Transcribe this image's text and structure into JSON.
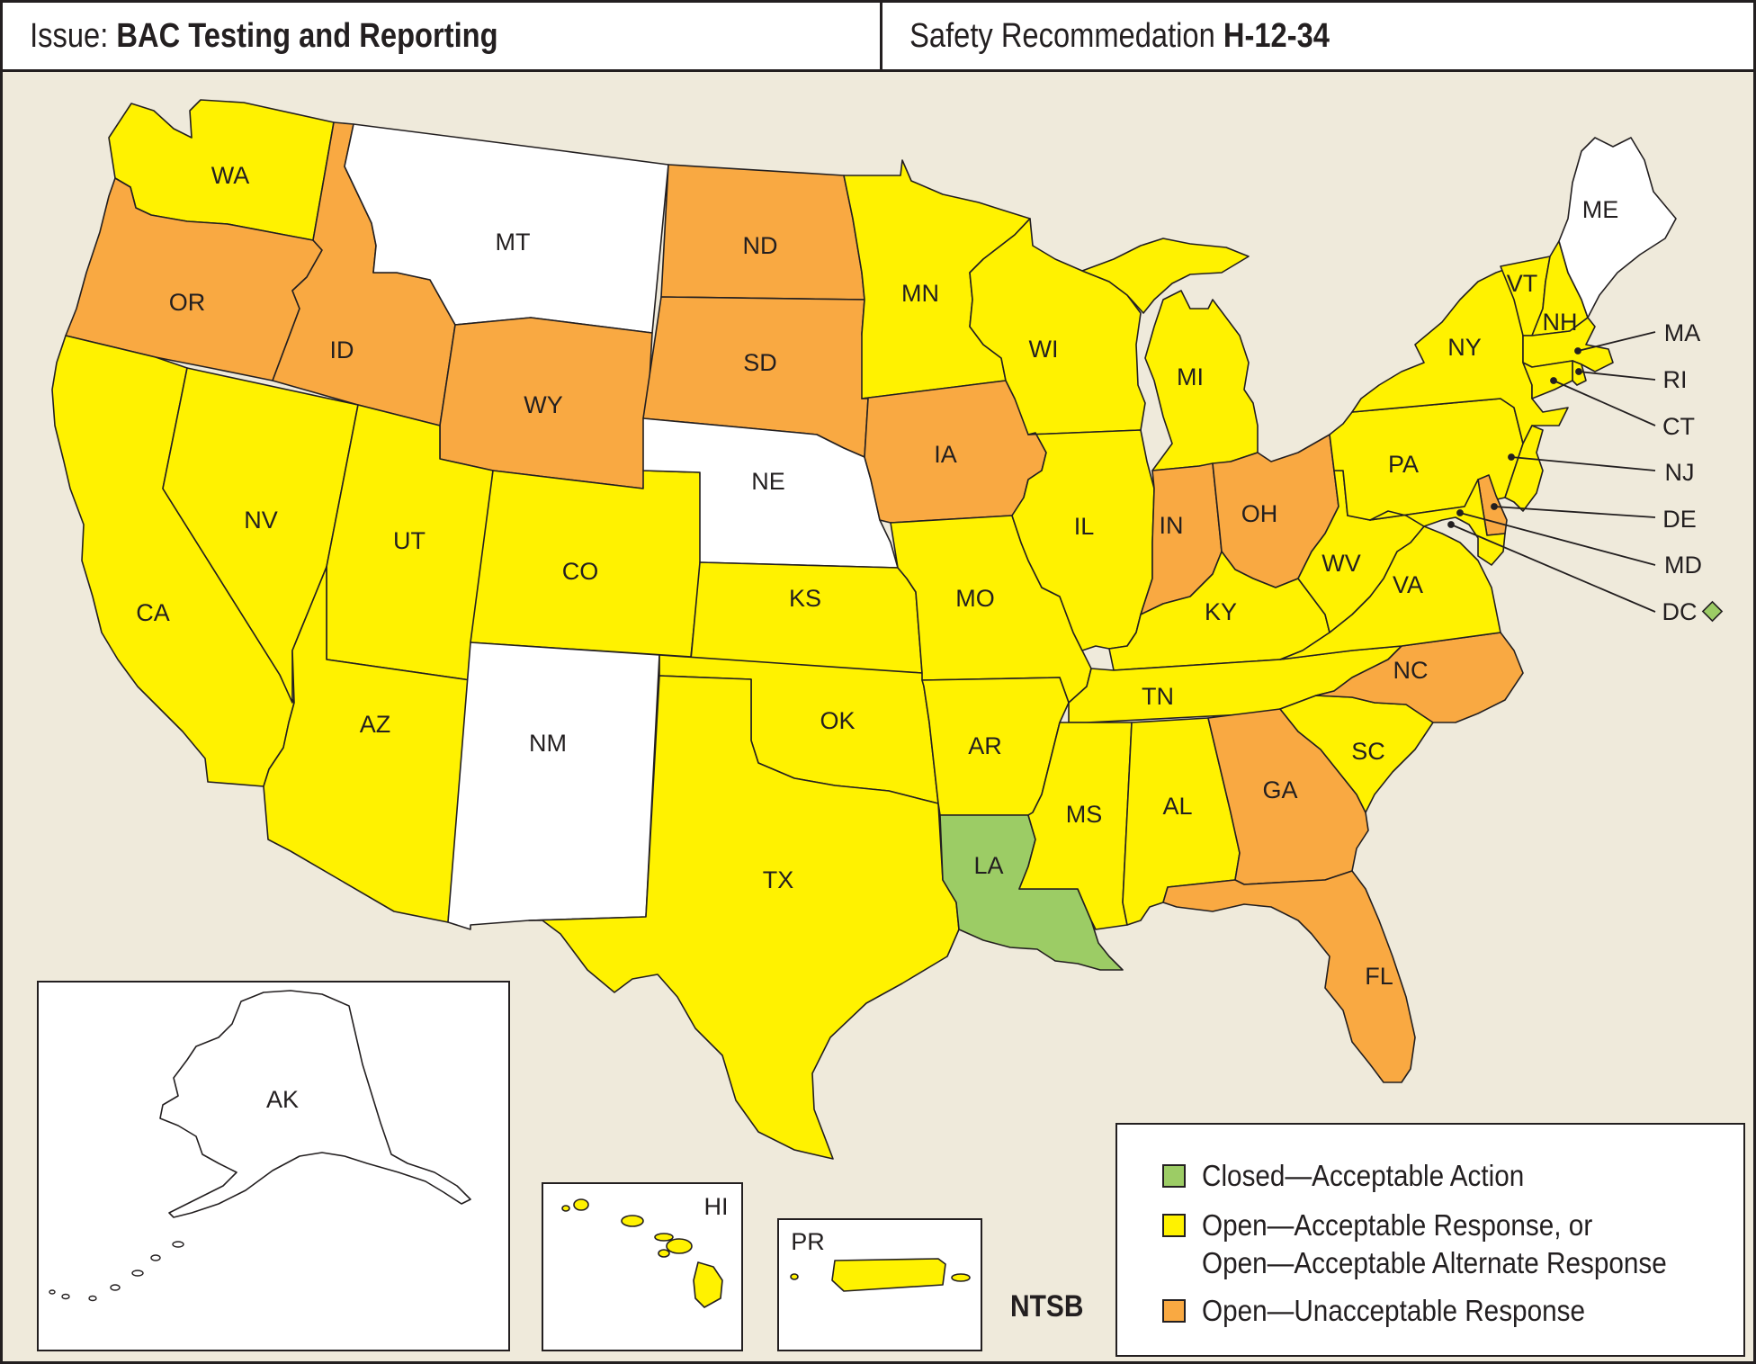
{
  "header": {
    "issue_prefix": "Issue:",
    "issue_title": "BAC Testing and Reporting",
    "rec_prefix": "Safety Recommedation",
    "rec_id": "H-12-34"
  },
  "colors": {
    "closed": "#9ccc65",
    "open_acceptable": "#fff200",
    "open_unacceptable": "#f9a942",
    "no_status": "#ffffff",
    "background": "#efeadb"
  },
  "legend": {
    "closed": "Closed—Acceptable Action",
    "open_acceptable_line1": "Open—Acceptable Response, or",
    "open_acceptable_line2": "Open—Acceptable Alternate Response",
    "open_unacceptable": "Open—Unacceptable Response"
  },
  "credit": "NTSB",
  "states": {
    "WA": {
      "label": "WA",
      "status": "open_acceptable"
    },
    "OR": {
      "label": "OR",
      "status": "open_unacceptable"
    },
    "CA": {
      "label": "CA",
      "status": "open_acceptable"
    },
    "NV": {
      "label": "NV",
      "status": "open_acceptable"
    },
    "ID": {
      "label": "ID",
      "status": "open_unacceptable"
    },
    "MT": {
      "label": "MT",
      "status": "no_status"
    },
    "WY": {
      "label": "WY",
      "status": "open_unacceptable"
    },
    "UT": {
      "label": "UT",
      "status": "open_acceptable"
    },
    "AZ": {
      "label": "AZ",
      "status": "open_acceptable"
    },
    "CO": {
      "label": "CO",
      "status": "open_acceptable"
    },
    "NM": {
      "label": "NM",
      "status": "no_status"
    },
    "ND": {
      "label": "ND",
      "status": "open_unacceptable"
    },
    "SD": {
      "label": "SD",
      "status": "open_unacceptable"
    },
    "NE": {
      "label": "NE",
      "status": "no_status"
    },
    "KS": {
      "label": "KS",
      "status": "open_acceptable"
    },
    "OK": {
      "label": "OK",
      "status": "open_acceptable"
    },
    "TX": {
      "label": "TX",
      "status": "open_acceptable"
    },
    "MN": {
      "label": "MN",
      "status": "open_acceptable"
    },
    "IA": {
      "label": "IA",
      "status": "open_unacceptable"
    },
    "MO": {
      "label": "MO",
      "status": "open_acceptable"
    },
    "AR": {
      "label": "AR",
      "status": "open_acceptable"
    },
    "LA": {
      "label": "LA",
      "status": "closed"
    },
    "WI": {
      "label": "WI",
      "status": "open_acceptable"
    },
    "IL": {
      "label": "IL",
      "status": "open_acceptable"
    },
    "MI": {
      "label": "MI",
      "status": "open_acceptable"
    },
    "IN": {
      "label": "IN",
      "status": "open_unacceptable"
    },
    "OH": {
      "label": "OH",
      "status": "open_unacceptable"
    },
    "KY": {
      "label": "KY",
      "status": "open_acceptable"
    },
    "TN": {
      "label": "TN",
      "status": "open_acceptable"
    },
    "MS": {
      "label": "MS",
      "status": "open_acceptable"
    },
    "AL": {
      "label": "AL",
      "status": "open_acceptable"
    },
    "GA": {
      "label": "GA",
      "status": "open_unacceptable"
    },
    "FL": {
      "label": "FL",
      "status": "open_unacceptable"
    },
    "SC": {
      "label": "SC",
      "status": "open_acceptable"
    },
    "NC": {
      "label": "NC",
      "status": "open_unacceptable"
    },
    "VA": {
      "label": "VA",
      "status": "open_acceptable"
    },
    "WV": {
      "label": "WV",
      "status": "open_acceptable"
    },
    "PA": {
      "label": "PA",
      "status": "open_acceptable"
    },
    "NY": {
      "label": "NY",
      "status": "open_acceptable"
    },
    "VT": {
      "label": "VT",
      "status": "open_acceptable"
    },
    "NH": {
      "label": "NH",
      "status": "open_acceptable"
    },
    "ME": {
      "label": "ME",
      "status": "no_status"
    },
    "MA": {
      "label": "MA",
      "status": "open_acceptable"
    },
    "RI": {
      "label": "RI",
      "status": "open_acceptable"
    },
    "CT": {
      "label": "CT",
      "status": "open_acceptable"
    },
    "NJ": {
      "label": "NJ",
      "status": "open_acceptable"
    },
    "DE": {
      "label": "DE",
      "status": "open_unacceptable"
    },
    "MD": {
      "label": "MD",
      "status": "open_acceptable"
    },
    "DC": {
      "label": "DC",
      "status": "closed"
    },
    "AK": {
      "label": "AK",
      "status": "no_status"
    },
    "HI": {
      "label": "HI",
      "status": "open_acceptable"
    },
    "PR": {
      "label": "PR",
      "status": "open_acceptable"
    }
  }
}
